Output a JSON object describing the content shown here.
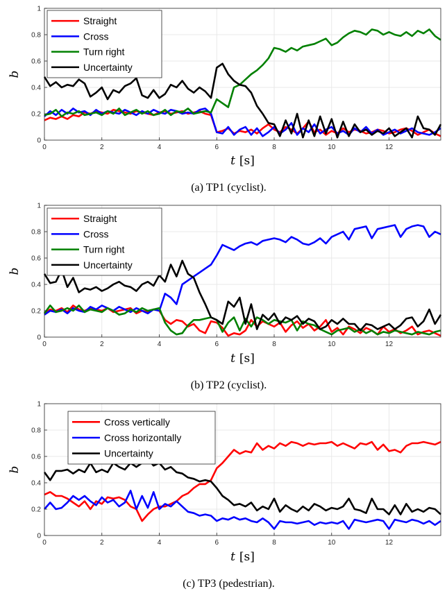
{
  "figure": {
    "captions": [
      "(a) TP1 (cyclist).",
      "(b) TP2 (cyclist).",
      "(c) TP3 (pedestrian)."
    ]
  },
  "chart_data": [
    {
      "type": "line",
      "xlabel": "t",
      "xunit": "[s]",
      "ylabel": "b",
      "xlim": [
        0,
        13.8
      ],
      "ylim": [
        0,
        1
      ],
      "xticks": [
        0,
        2,
        4,
        6,
        8,
        10,
        12
      ],
      "yticks": [
        0,
        0.2,
        0.4,
        0.6,
        0.8,
        1
      ],
      "grid": true,
      "legend": "top-left",
      "x": [
        0,
        0.2,
        0.4,
        0.6,
        0.8,
        1,
        1.2,
        1.4,
        1.6,
        1.8,
        2,
        2.2,
        2.4,
        2.6,
        2.8,
        3,
        3.2,
        3.4,
        3.6,
        3.8,
        4,
        4.2,
        4.4,
        4.6,
        4.8,
        5,
        5.2,
        5.4,
        5.6,
        5.8,
        6,
        6.2,
        6.4,
        6.6,
        6.8,
        7,
        7.2,
        7.4,
        7.6,
        7.8,
        8,
        8.2,
        8.4,
        8.6,
        8.8,
        9,
        9.2,
        9.4,
        9.6,
        9.8,
        10,
        10.2,
        10.4,
        10.6,
        10.8,
        11,
        11.2,
        11.4,
        11.6,
        11.8,
        12,
        12.2,
        12.4,
        12.6,
        12.8,
        13,
        13.2,
        13.4,
        13.6,
        13.8
      ],
      "series": [
        {
          "name": "Straight",
          "color": "#ff0000",
          "values": [
            0.15,
            0.17,
            0.16,
            0.18,
            0.16,
            0.19,
            0.18,
            0.21,
            0.2,
            0.22,
            0.21,
            0.2,
            0.23,
            0.22,
            0.21,
            0.2,
            0.22,
            0.21,
            0.2,
            0.19,
            0.21,
            0.22,
            0.2,
            0.21,
            0.22,
            0.2,
            0.21,
            0.22,
            0.2,
            0.19,
            0.06,
            0.07,
            0.09,
            0.05,
            0.07,
            0.06,
            0.08,
            0.05,
            0.09,
            0.12,
            0.08,
            0.06,
            0.1,
            0.08,
            0.05,
            0.09,
            0.14,
            0.06,
            0.08,
            0.04,
            0.07,
            0.05,
            0.09,
            0.06,
            0.08,
            0.07,
            0.05,
            0.06,
            0.08,
            0.07,
            0.05,
            0.06,
            0.08,
            0.09,
            0.07,
            0.04,
            0.06,
            0.08,
            0.05,
            0.03
          ]
        },
        {
          "name": "Cross",
          "color": "#0000ff",
          "values": [
            0.18,
            0.22,
            0.19,
            0.23,
            0.2,
            0.24,
            0.21,
            0.22,
            0.19,
            0.23,
            0.2,
            0.22,
            0.21,
            0.2,
            0.23,
            0.21,
            0.19,
            0.22,
            0.2,
            0.23,
            0.21,
            0.2,
            0.23,
            0.22,
            0.2,
            0.21,
            0.2,
            0.23,
            0.24,
            0.2,
            0.06,
            0.05,
            0.1,
            0.04,
            0.08,
            0.1,
            0.04,
            0.09,
            0.03,
            0.06,
            0.1,
            0.05,
            0.08,
            0.13,
            0.04,
            0.09,
            0.06,
            0.12,
            0.05,
            0.08,
            0.1,
            0.05,
            0.07,
            0.04,
            0.09,
            0.06,
            0.1,
            0.05,
            0.08,
            0.04,
            0.06,
            0.08,
            0.05,
            0.07,
            0.09,
            0.06,
            0.05,
            0.04,
            0.06,
            0.09
          ]
        },
        {
          "name": "Turn right",
          "color": "#008000",
          "values": [
            0.19,
            0.2,
            0.23,
            0.18,
            0.21,
            0.2,
            0.22,
            0.19,
            0.2,
            0.21,
            0.19,
            0.22,
            0.2,
            0.24,
            0.19,
            0.21,
            0.23,
            0.2,
            0.22,
            0.19,
            0.2,
            0.23,
            0.19,
            0.22,
            0.21,
            0.24,
            0.2,
            0.21,
            0.22,
            0.21,
            0.31,
            0.28,
            0.25,
            0.4,
            0.42,
            0.46,
            0.5,
            0.53,
            0.57,
            0.62,
            0.7,
            0.69,
            0.67,
            0.7,
            0.68,
            0.71,
            0.72,
            0.73,
            0.75,
            0.77,
            0.72,
            0.74,
            0.78,
            0.81,
            0.83,
            0.82,
            0.8,
            0.84,
            0.83,
            0.8,
            0.82,
            0.8,
            0.79,
            0.82,
            0.79,
            0.83,
            0.81,
            0.84,
            0.79,
            0.76
          ]
        },
        {
          "name": "Uncertainty",
          "color": "#000000",
          "values": [
            0.48,
            0.41,
            0.44,
            0.4,
            0.42,
            0.41,
            0.46,
            0.43,
            0.33,
            0.36,
            0.4,
            0.31,
            0.38,
            0.36,
            0.41,
            0.43,
            0.47,
            0.34,
            0.32,
            0.38,
            0.32,
            0.35,
            0.42,
            0.4,
            0.45,
            0.39,
            0.36,
            0.4,
            0.37,
            0.32,
            0.55,
            0.58,
            0.5,
            0.45,
            0.42,
            0.41,
            0.36,
            0.26,
            0.2,
            0.13,
            0.12,
            0.03,
            0.15,
            0.05,
            0.2,
            0.02,
            0.15,
            0.03,
            0.18,
            0.05,
            0.16,
            0.02,
            0.14,
            0.03,
            0.12,
            0.06,
            0.08,
            0.04,
            0.07,
            0.05,
            0.09,
            0.03,
            0.06,
            0.09,
            0.02,
            0.18,
            0.09,
            0.08,
            0.04,
            0.12
          ]
        }
      ]
    },
    {
      "type": "line",
      "xlabel": "t",
      "xunit": "[s]",
      "ylabel": "b",
      "xlim": [
        0,
        13.8
      ],
      "ylim": [
        0,
        1
      ],
      "xticks": [
        0,
        2,
        4,
        6,
        8,
        10,
        12
      ],
      "yticks": [
        0,
        0.2,
        0.4,
        0.6,
        0.8,
        1
      ],
      "grid": true,
      "legend": "top-left",
      "x": [
        0,
        0.2,
        0.4,
        0.6,
        0.8,
        1,
        1.2,
        1.4,
        1.6,
        1.8,
        2,
        2.2,
        2.4,
        2.6,
        2.8,
        3,
        3.2,
        3.4,
        3.6,
        3.8,
        4,
        4.2,
        4.4,
        4.6,
        4.8,
        5,
        5.2,
        5.4,
        5.6,
        5.8,
        6,
        6.2,
        6.4,
        6.6,
        6.8,
        7,
        7.2,
        7.4,
        7.6,
        7.8,
        8,
        8.2,
        8.4,
        8.6,
        8.8,
        9,
        9.2,
        9.4,
        9.6,
        9.8,
        10,
        10.2,
        10.4,
        10.6,
        10.8,
        11,
        11.2,
        11.4,
        11.6,
        11.8,
        12,
        12.2,
        12.4,
        12.6,
        12.8,
        13,
        13.2,
        13.4,
        13.6,
        13.8
      ],
      "series": [
        {
          "name": "Straight",
          "color": "#ff0000",
          "values": [
            0.18,
            0.21,
            0.2,
            0.22,
            0.19,
            0.24,
            0.21,
            0.2,
            0.22,
            0.21,
            0.2,
            0.22,
            0.19,
            0.2,
            0.21,
            0.22,
            0.18,
            0.2,
            0.19,
            0.21,
            0.2,
            0.13,
            0.1,
            0.13,
            0.12,
            0.08,
            0.1,
            0.05,
            0.03,
            0.12,
            0.11,
            0.07,
            0.01,
            0.03,
            0.02,
            0.05,
            0.13,
            0.08,
            0.12,
            0.1,
            0.08,
            0.11,
            0.04,
            0.09,
            0.12,
            0.07,
            0.1,
            0.05,
            0.08,
            0.13,
            0.04,
            0.07,
            0.02,
            0.08,
            0.06,
            0.03,
            0.07,
            0.05,
            0.02,
            0.08,
            0.04,
            0.06,
            0.03,
            0.05,
            0.08,
            0.02,
            0.04,
            0.05,
            0.03,
            0.01
          ]
        },
        {
          "name": "Cross",
          "color": "#0000ff",
          "values": [
            0.17,
            0.2,
            0.19,
            0.21,
            0.18,
            0.22,
            0.2,
            0.19,
            0.23,
            0.21,
            0.24,
            0.22,
            0.2,
            0.23,
            0.21,
            0.19,
            0.22,
            0.2,
            0.18,
            0.21,
            0.2,
            0.33,
            0.3,
            0.25,
            0.4,
            0.43,
            0.46,
            0.49,
            0.52,
            0.55,
            0.62,
            0.7,
            0.68,
            0.66,
            0.69,
            0.71,
            0.72,
            0.7,
            0.73,
            0.74,
            0.75,
            0.74,
            0.72,
            0.76,
            0.74,
            0.71,
            0.7,
            0.72,
            0.75,
            0.71,
            0.76,
            0.78,
            0.8,
            0.74,
            0.82,
            0.83,
            0.84,
            0.75,
            0.82,
            0.83,
            0.84,
            0.85,
            0.76,
            0.82,
            0.84,
            0.85,
            0.84,
            0.76,
            0.8,
            0.78
          ]
        },
        {
          "name": "Turn right",
          "color": "#008000",
          "values": [
            0.18,
            0.24,
            0.19,
            0.2,
            0.22,
            0.2,
            0.24,
            0.19,
            0.21,
            0.2,
            0.19,
            0.22,
            0.2,
            0.17,
            0.18,
            0.21,
            0.19,
            0.22,
            0.2,
            0.21,
            0.22,
            0.11,
            0.05,
            0.02,
            0.03,
            0.09,
            0.13,
            0.13,
            0.14,
            0.15,
            0.13,
            0.04,
            0.11,
            0.15,
            0.05,
            0.14,
            0.08,
            0.15,
            0.13,
            0.1,
            0.13,
            0.12,
            0.11,
            0.13,
            0.05,
            0.12,
            0.1,
            0.09,
            0.06,
            0.04,
            0.02,
            0.05,
            0.06,
            0.07,
            0.04,
            0.06,
            0.03,
            0.05,
            0.02,
            0.04,
            0.03,
            0.05,
            0.04,
            0.03,
            0.02,
            0.04,
            0.03,
            0.02,
            0.04,
            0.05
          ]
        },
        {
          "name": "Uncertainty",
          "color": "#000000",
          "values": [
            0.48,
            0.41,
            0.42,
            0.51,
            0.38,
            0.45,
            0.34,
            0.37,
            0.36,
            0.38,
            0.35,
            0.37,
            0.4,
            0.42,
            0.39,
            0.38,
            0.35,
            0.4,
            0.42,
            0.39,
            0.47,
            0.42,
            0.55,
            0.46,
            0.58,
            0.48,
            0.45,
            0.34,
            0.25,
            0.15,
            0.13,
            0.1,
            0.27,
            0.23,
            0.3,
            0.1,
            0.25,
            0.06,
            0.17,
            0.13,
            0.18,
            0.1,
            0.15,
            0.13,
            0.16,
            0.1,
            0.14,
            0.12,
            0.06,
            0.08,
            0.13,
            0.1,
            0.14,
            0.1,
            0.1,
            0.05,
            0.1,
            0.09,
            0.06,
            0.08,
            0.1,
            0.06,
            0.09,
            0.14,
            0.15,
            0.08,
            0.12,
            0.21,
            0.1,
            0.17
          ]
        }
      ]
    },
    {
      "type": "line",
      "xlabel": "t",
      "xunit": "[s]",
      "ylabel": "b",
      "xlim": [
        0,
        13.8
      ],
      "ylim": [
        0,
        1
      ],
      "xticks": [
        0,
        2,
        4,
        6,
        8,
        10,
        12
      ],
      "yticks": [
        0,
        0.2,
        0.4,
        0.6,
        0.8,
        1
      ],
      "grid": true,
      "legend": "top-left",
      "x": [
        0,
        0.2,
        0.4,
        0.6,
        0.8,
        1,
        1.2,
        1.4,
        1.6,
        1.8,
        2,
        2.2,
        2.4,
        2.6,
        2.8,
        3,
        3.2,
        3.4,
        3.6,
        3.8,
        4,
        4.2,
        4.4,
        4.6,
        4.8,
        5,
        5.2,
        5.4,
        5.6,
        5.8,
        6,
        6.2,
        6.4,
        6.6,
        6.8,
        7,
        7.2,
        7.4,
        7.6,
        7.8,
        8,
        8.2,
        8.4,
        8.6,
        8.8,
        9,
        9.2,
        9.4,
        9.6,
        9.8,
        10,
        10.2,
        10.4,
        10.6,
        10.8,
        11,
        11.2,
        11.4,
        11.6,
        11.8,
        12,
        12.2,
        12.4,
        12.6,
        12.8,
        13,
        13.2,
        13.4,
        13.6,
        13.8
      ],
      "series": [
        {
          "name": "Cross vertically",
          "color": "#ff0000",
          "values": [
            0.31,
            0.33,
            0.3,
            0.3,
            0.28,
            0.25,
            0.22,
            0.26,
            0.2,
            0.26,
            0.24,
            0.29,
            0.28,
            0.29,
            0.27,
            0.22,
            0.2,
            0.11,
            0.16,
            0.2,
            0.22,
            0.22,
            0.24,
            0.26,
            0.3,
            0.32,
            0.36,
            0.39,
            0.39,
            0.42,
            0.51,
            0.55,
            0.6,
            0.65,
            0.62,
            0.64,
            0.63,
            0.7,
            0.65,
            0.68,
            0.66,
            0.7,
            0.68,
            0.71,
            0.7,
            0.68,
            0.7,
            0.69,
            0.7,
            0.7,
            0.71,
            0.68,
            0.7,
            0.68,
            0.66,
            0.7,
            0.69,
            0.71,
            0.65,
            0.69,
            0.64,
            0.65,
            0.63,
            0.68,
            0.7,
            0.7,
            0.71,
            0.7,
            0.69,
            0.71
          ]
        },
        {
          "name": "Cross horizontally",
          "color": "#0000ff",
          "values": [
            0.2,
            0.25,
            0.2,
            0.21,
            0.25,
            0.3,
            0.27,
            0.3,
            0.26,
            0.23,
            0.29,
            0.25,
            0.27,
            0.22,
            0.25,
            0.34,
            0.2,
            0.3,
            0.21,
            0.33,
            0.2,
            0.24,
            0.22,
            0.26,
            0.22,
            0.18,
            0.17,
            0.15,
            0.16,
            0.15,
            0.11,
            0.13,
            0.12,
            0.14,
            0.12,
            0.13,
            0.11,
            0.1,
            0.13,
            0.1,
            0.05,
            0.11,
            0.1,
            0.1,
            0.09,
            0.1,
            0.11,
            0.08,
            0.1,
            0.09,
            0.1,
            0.09,
            0.11,
            0.05,
            0.12,
            0.11,
            0.1,
            0.11,
            0.12,
            0.11,
            0.05,
            0.12,
            0.11,
            0.1,
            0.12,
            0.11,
            0.09,
            0.11,
            0.08,
            0.11
          ]
        },
        {
          "name": "Uncertainty",
          "color": "#000000",
          "values": [
            0.48,
            0.42,
            0.49,
            0.49,
            0.5,
            0.47,
            0.5,
            0.48,
            0.55,
            0.48,
            0.5,
            0.48,
            0.55,
            0.52,
            0.5,
            0.55,
            0.52,
            0.55,
            0.58,
            0.53,
            0.55,
            0.5,
            0.52,
            0.48,
            0.47,
            0.44,
            0.43,
            0.41,
            0.42,
            0.41,
            0.36,
            0.3,
            0.27,
            0.23,
            0.24,
            0.22,
            0.25,
            0.19,
            0.22,
            0.2,
            0.28,
            0.18,
            0.23,
            0.2,
            0.18,
            0.22,
            0.19,
            0.24,
            0.22,
            0.19,
            0.21,
            0.2,
            0.22,
            0.28,
            0.2,
            0.19,
            0.17,
            0.28,
            0.2,
            0.2,
            0.16,
            0.23,
            0.16,
            0.24,
            0.18,
            0.2,
            0.18,
            0.21,
            0.2,
            0.16
          ]
        }
      ]
    }
  ]
}
